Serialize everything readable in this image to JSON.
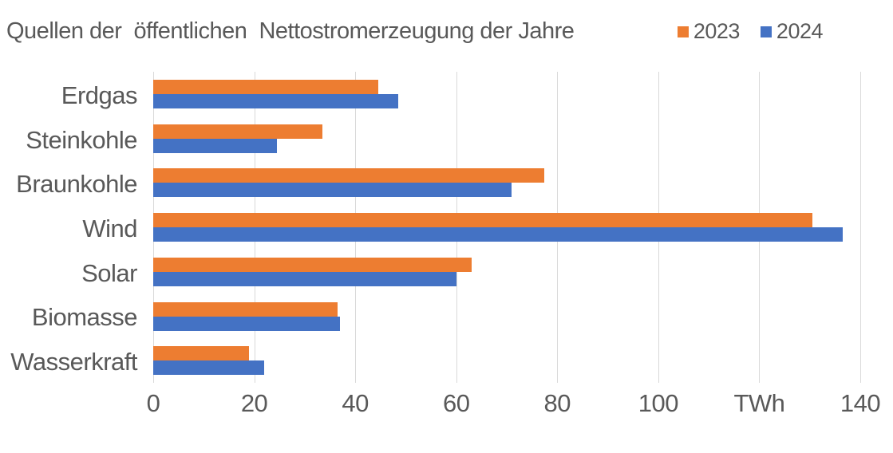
{
  "title": "Quellen der  öffentlichen  Nettostromerzeugung der Jahre",
  "legend": {
    "items": [
      {
        "label": "2023",
        "color": "#ED7D31"
      },
      {
        "label": "2024",
        "color": "#4472C4"
      }
    ]
  },
  "colors": {
    "series_2023": "#ED7D31",
    "series_2024": "#4472C4",
    "gridline": "#D9D9D9",
    "text": "#595959",
    "background": "#FFFFFF"
  },
  "chart_data": {
    "type": "bar",
    "orientation": "horizontal",
    "title": "Quellen der  öffentlichen  Nettostromerzeugung der Jahre",
    "unit": "TWh",
    "categories": [
      "Erdgas",
      "Steinkohle",
      "Braunkohle",
      "Wind",
      "Solar",
      "Biomasse",
      "Wasserkraft"
    ],
    "series": [
      {
        "name": "2023",
        "color": "#ED7D31",
        "values": [
          44.5,
          33.5,
          77.5,
          130.5,
          63,
          36.5,
          19
        ]
      },
      {
        "name": "2024",
        "color": "#4472C4",
        "values": [
          48.5,
          24.5,
          71,
          136.5,
          60,
          37,
          22
        ]
      }
    ],
    "xlim": [
      0,
      140
    ],
    "xtick_step": 20,
    "xtick_labels": [
      "0",
      "20",
      "40",
      "60",
      "80",
      "100",
      "TWh",
      "140"
    ],
    "xlabel": "",
    "ylabel": "",
    "grid": "vertical",
    "legend_position": "top-right"
  }
}
